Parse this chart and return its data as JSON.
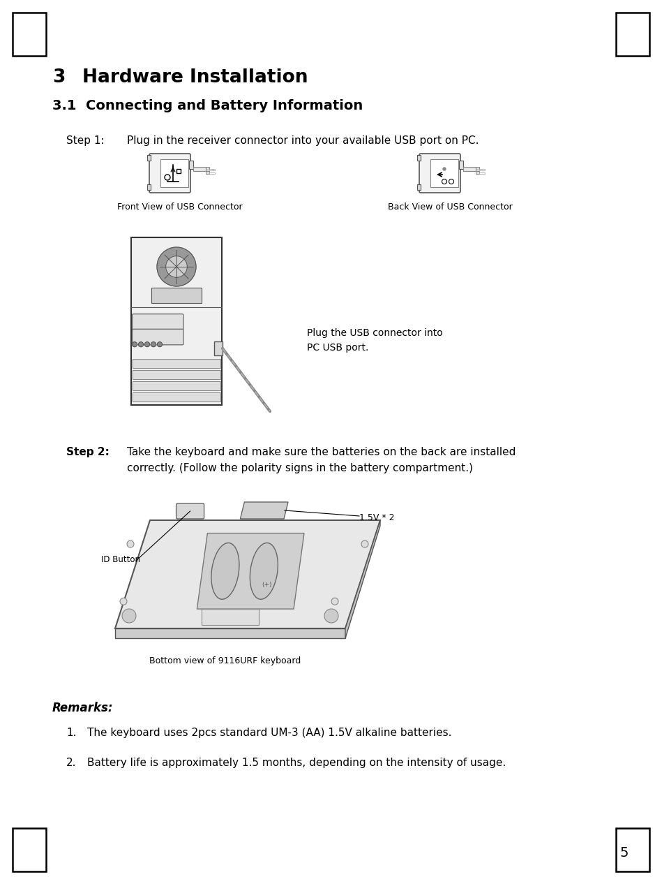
{
  "bg_color": "#ffffff",
  "text_color": "#000000",
  "page_number": "5",
  "heading1_num": "3",
  "heading1_text": "Hardware Installation",
  "heading2": "3.1  Connecting and Battery Information",
  "step1_label": "Step 1:",
  "step1_text": "Plug in the receiver connector into your available USB port on PC.",
  "front_label": "Front View of USB Connector",
  "back_label": "Back View of USB Connector",
  "pc_caption": "Plug the USB connector into\nPC USB port.",
  "step2_label": "Step 2:",
  "step2_text_line1": "Take the keyboard and make sure the batteries on the back are installed",
  "step2_text_line2": "correctly. (Follow the polarity signs in the battery compartment.)",
  "id_button_label": "ID Button",
  "voltage_label": "1.5V * 2",
  "keyboard_caption": "Bottom view of 9116URF keyboard",
  "remarks_heading": "Remarks:",
  "remark1": "The keyboard uses 2pcs standard UM-3 (AA) 1.5V alkaline batteries.",
  "remark2": "Battery life is approximately 1.5 months, depending on the intensity of usage."
}
